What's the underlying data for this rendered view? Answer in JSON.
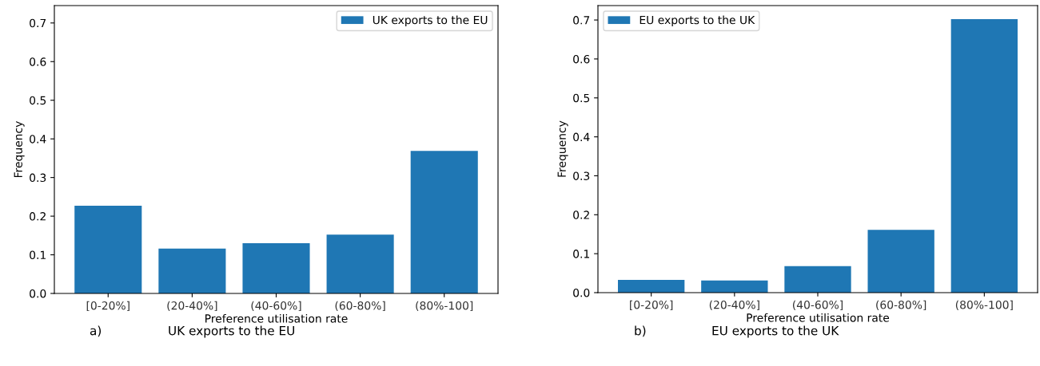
{
  "chart_data": [
    {
      "type": "bar",
      "categories": [
        "[0-20%]",
        "(20-40%]",
        "(40-60%]",
        "(60-80%]",
        "(80%-100]"
      ],
      "xlabel": "Preference utilisation rate",
      "ylabel": "Frequency",
      "series": [
        {
          "name": "UK exports to the EU",
          "color": "#1f77b4",
          "values": [
            0.227,
            0.116,
            0.13,
            0.152,
            0.369
          ]
        }
      ],
      "ylim": [
        0,
        0.745
      ],
      "yticks": [
        {
          "value": 0,
          "label": "0.0"
        },
        0.1,
        0.2,
        0.3,
        0.4,
        0.5,
        0.6,
        0.7
      ],
      "legend": "top right",
      "grid": false,
      "annotations": [
        "a)",
        "UK exports to the EU"
      ]
    },
    {
      "type": "bar",
      "categories": [
        "[0-20%]",
        "(20-40%]",
        "(40-60%]",
        "(60-80%]",
        "(80%-100]"
      ],
      "xlabel": "Preference utilisation rate",
      "ylabel": "Frequency",
      "series": [
        {
          "name": "EU exports to the UK",
          "color": "#1f77b4",
          "values": [
            0.033,
            0.031,
            0.068,
            0.161,
            0.702
          ]
        }
      ],
      "ylim": [
        0,
        0.737
      ],
      "yticks": [
        {
          "value": 0,
          "label": "0.0"
        },
        0.1,
        0.2,
        0.3,
        0.4,
        0.5,
        0.6,
        0.7
      ],
      "legend": "top left",
      "grid": false,
      "annotations": [
        "b)",
        "EU exports to the UK"
      ]
    }
  ]
}
